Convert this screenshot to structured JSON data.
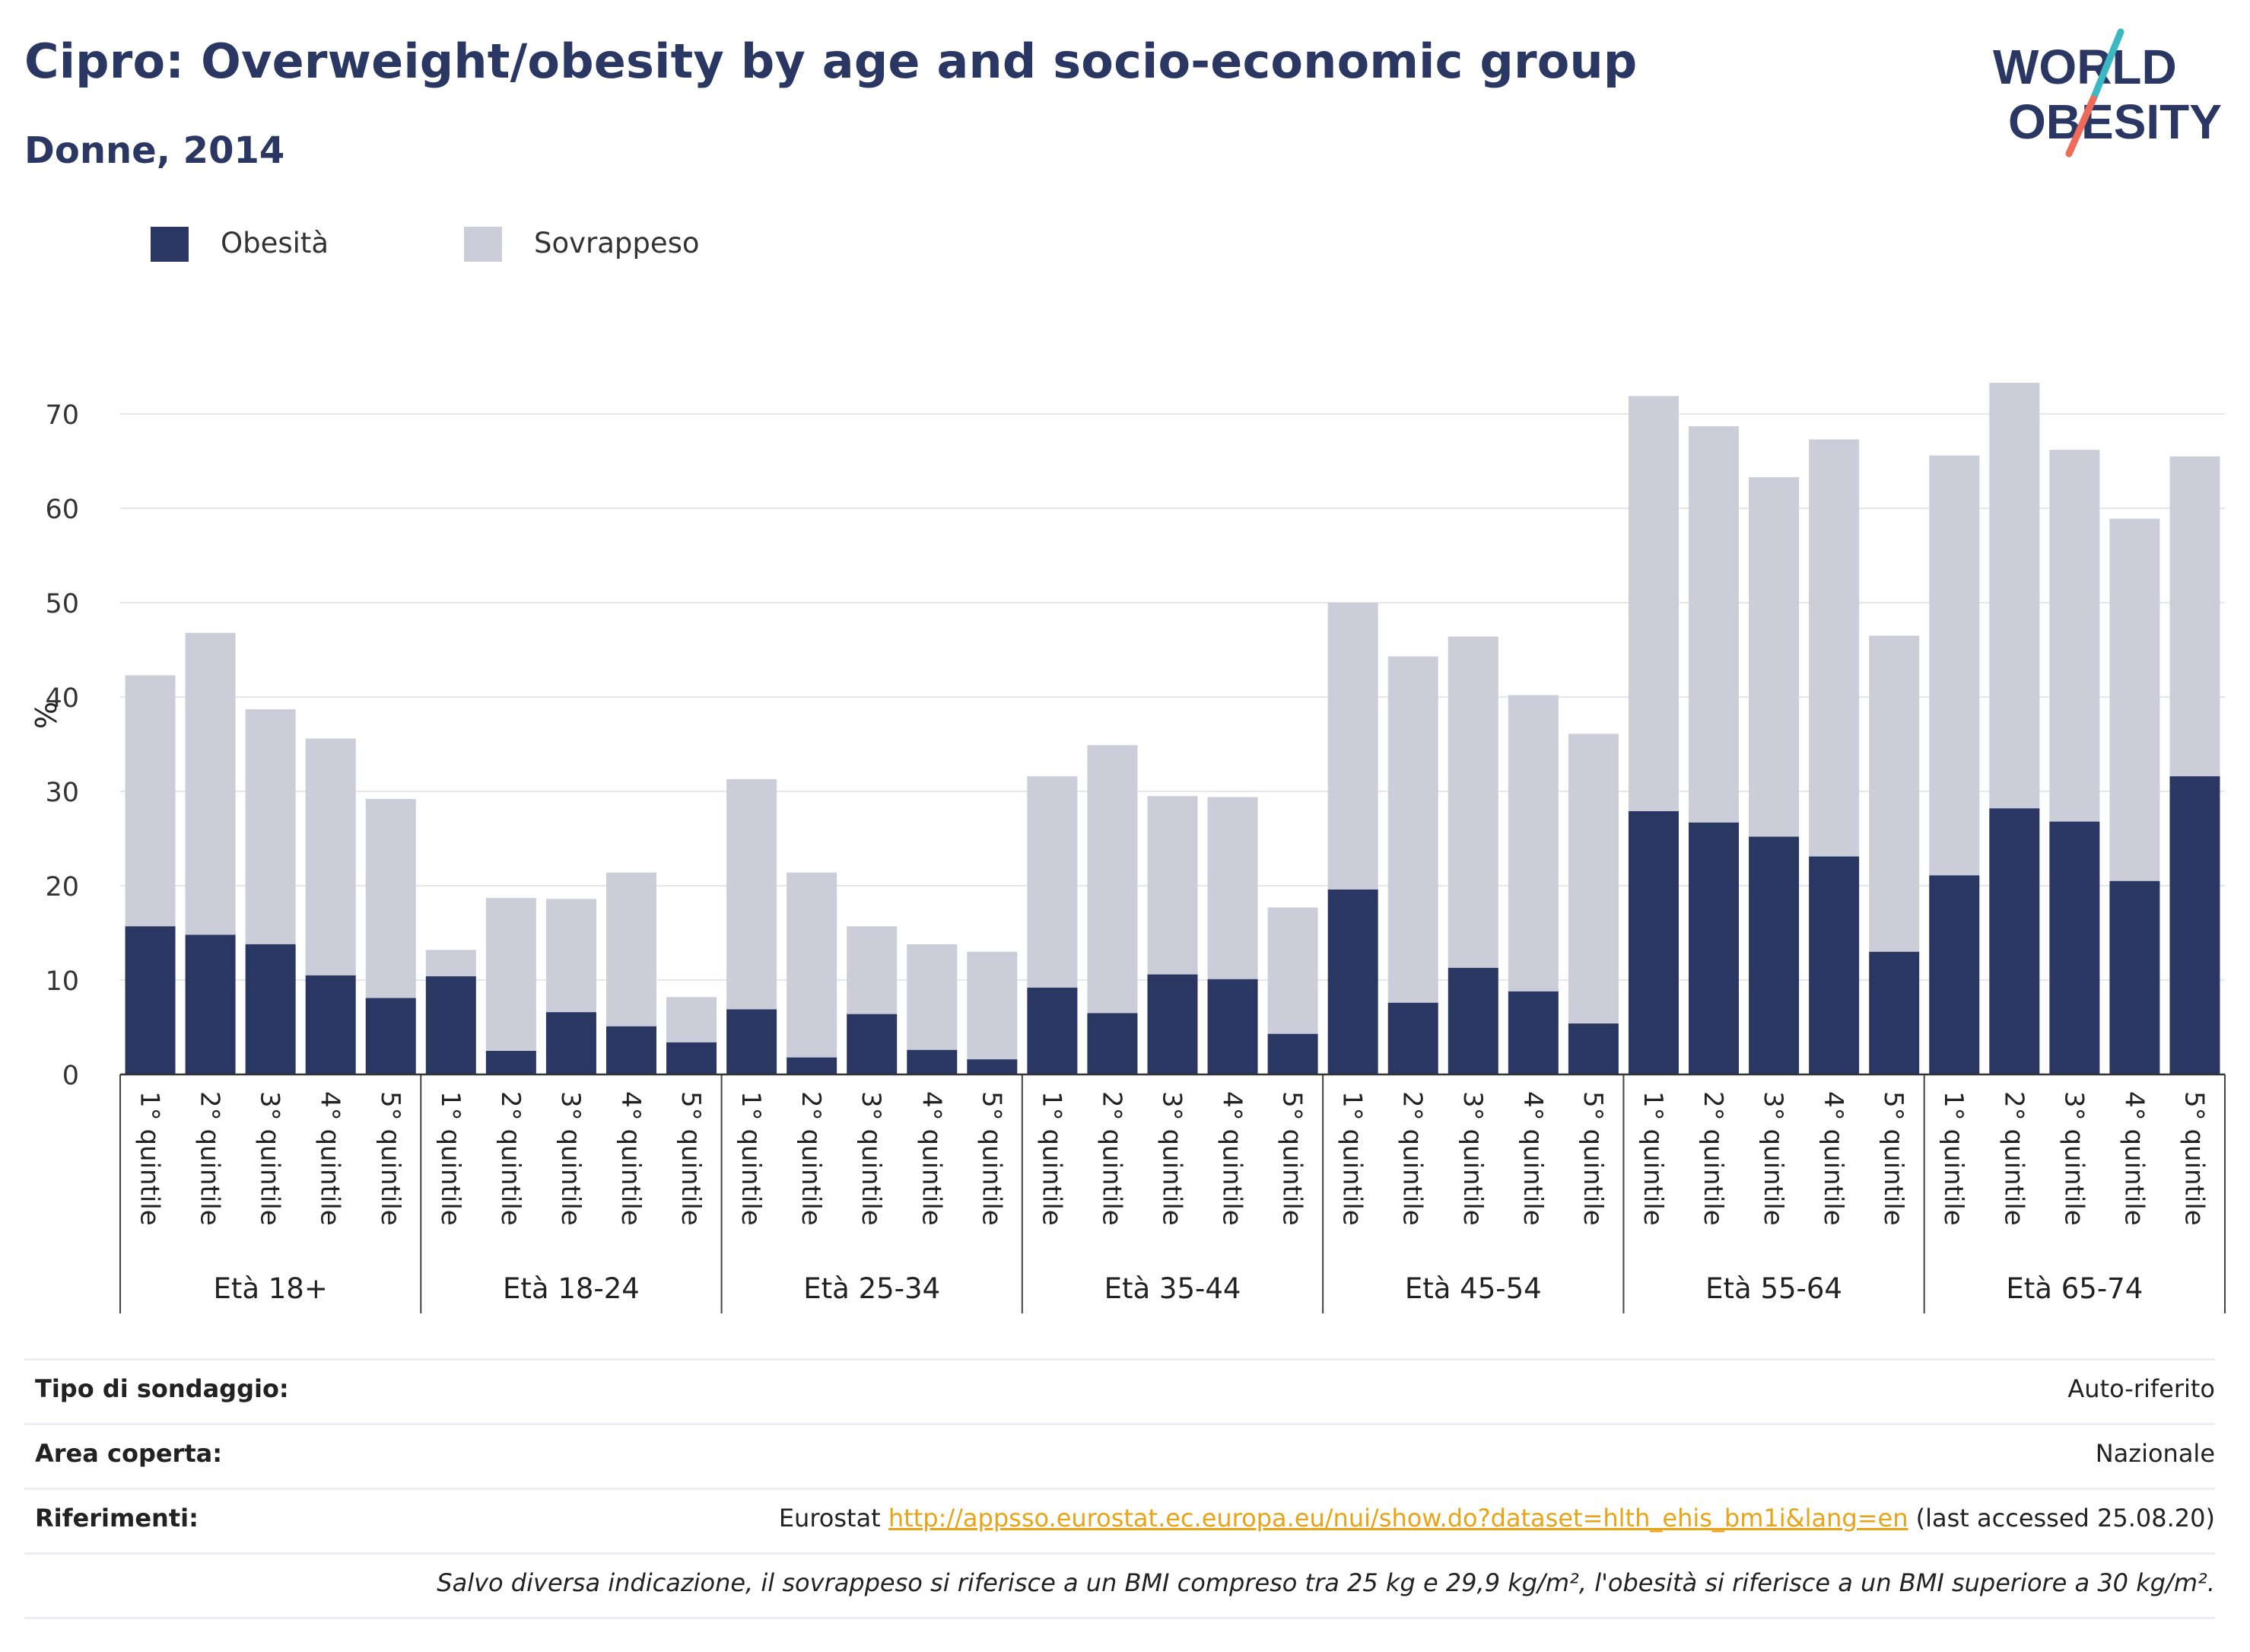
{
  "title": "Cipro: Overweight/obesity by age and socio-economic group",
  "subtitle": "Donne, 2014",
  "logo": {
    "line1": "WORLD",
    "line2": "OBESITY"
  },
  "colors": {
    "obesity": "#2b3763",
    "overweight": "#cbcdd9",
    "title": "#2b3763",
    "link": "#e8a317",
    "logo_teal": "#3cb8c2",
    "logo_coral": "#f06a5a"
  },
  "legend": [
    {
      "label": "Obesità",
      "color": "#2b3763"
    },
    {
      "label": "Sovrappeso",
      "color": "#cbcdd9"
    }
  ],
  "chart_data": {
    "type": "bar",
    "stacked": true,
    "ylabel": "%",
    "ylim": [
      0,
      75
    ],
    "yticks": [
      0,
      10,
      20,
      30,
      40,
      50,
      60,
      70
    ],
    "grid": true,
    "legend_position": "top-left",
    "groups": [
      {
        "name": "Età 18+",
        "categories": [
          "1° quintile",
          "2° quintile",
          "3° quintile",
          "4° quintile",
          "5° quintile"
        ],
        "obesity": [
          15.7,
          14.8,
          13.8,
          10.5,
          8.1
        ],
        "total": [
          42.3,
          46.8,
          38.7,
          35.6,
          29.2
        ]
      },
      {
        "name": "Età 18-24",
        "categories": [
          "1° quintile",
          "2° quintile",
          "3° quintile",
          "4° quintile",
          "5° quintile"
        ],
        "obesity": [
          10.4,
          2.5,
          6.6,
          5.1,
          3.4
        ],
        "total": [
          13.2,
          18.7,
          18.6,
          21.4,
          8.2
        ]
      },
      {
        "name": "Età 25-34",
        "categories": [
          "1° quintile",
          "2° quintile",
          "3° quintile",
          "4° quintile",
          "5° quintile"
        ],
        "obesity": [
          6.9,
          1.8,
          6.4,
          2.6,
          1.6
        ],
        "total": [
          31.3,
          21.4,
          15.7,
          13.8,
          13.0
        ]
      },
      {
        "name": "Età 35-44",
        "categories": [
          "1° quintile",
          "2° quintile",
          "3° quintile",
          "4° quintile",
          "5° quintile"
        ],
        "obesity": [
          9.2,
          6.5,
          10.6,
          10.1,
          4.3
        ],
        "total": [
          31.6,
          34.9,
          29.5,
          29.4,
          17.7
        ]
      },
      {
        "name": "Età 45-54",
        "categories": [
          "1° quintile",
          "2° quintile",
          "3° quintile",
          "4° quintile",
          "5° quintile"
        ],
        "obesity": [
          19.6,
          7.6,
          11.3,
          8.8,
          5.4
        ],
        "total": [
          50.0,
          44.3,
          46.4,
          40.2,
          36.1
        ]
      },
      {
        "name": "Età 55-64",
        "categories": [
          "1° quintile",
          "2° quintile",
          "3° quintile",
          "4° quintile",
          "5° quintile"
        ],
        "obesity": [
          27.9,
          26.7,
          25.2,
          23.1,
          13.0
        ],
        "total": [
          71.9,
          68.7,
          63.3,
          67.3,
          46.5
        ]
      },
      {
        "name": "Età 65-74",
        "categories": [
          "1° quintile",
          "2° quintile",
          "3° quintile",
          "4° quintile",
          "5° quintile"
        ],
        "obesity": [
          21.1,
          28.2,
          26.8,
          20.5,
          31.6
        ],
        "total": [
          65.6,
          73.3,
          66.2,
          58.9,
          65.5
        ]
      }
    ]
  },
  "info": {
    "survey_label": "Tipo di sondaggio:",
    "survey_value": "Auto-riferito",
    "area_label": "Area coperta:",
    "area_value": "Nazionale",
    "refs_label": "Riferimenti:",
    "refs_source": "Eurostat",
    "refs_link": "http://appsso.eurostat.ec.europa.eu/nui/show.do?dataset=hlth_ehis_bm1i&lang=en",
    "refs_accessed": "(last accessed 25.08.20)",
    "note": "Salvo diversa indicazione, il sovrappeso si riferisce a un BMI compreso tra 25 kg e 29,9 kg/m², l'obesità si riferisce a un BMI superiore a 30 kg/m²."
  }
}
